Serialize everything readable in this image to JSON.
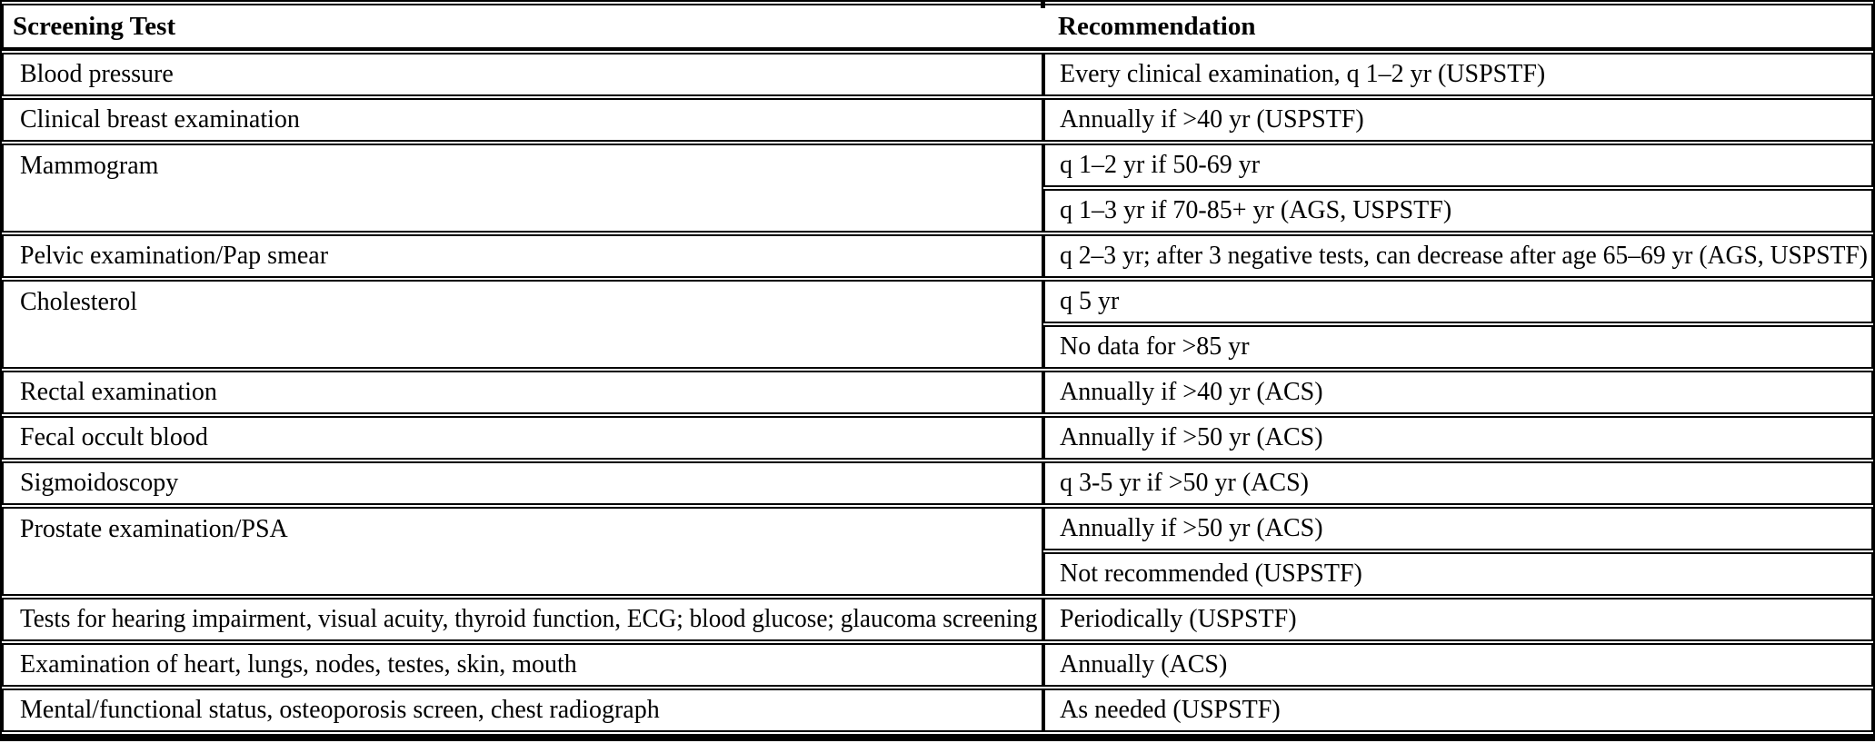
{
  "table": {
    "columns": [
      {
        "label": "Screening Test"
      },
      {
        "label": "Recommendation"
      }
    ],
    "rows": [
      {
        "test": "Blood pressure",
        "recommendations": [
          "Every clinical examination, q 1–2 yr (USPSTF)"
        ]
      },
      {
        "test": "Clinical breast examination",
        "recommendations": [
          "Annually if >40 yr (USPSTF)"
        ]
      },
      {
        "test": "Mammogram",
        "recommendations": [
          "q 1–2 yr if 50-69 yr",
          "q 1–3 yr if 70-85+ yr (AGS, USPSTF)"
        ]
      },
      {
        "test": "Pelvic examination/Pap smear",
        "recommendations": [
          "q 2–3 yr; after 3 negative tests, can decrease after age 65–69 yr (AGS, USPSTF)"
        ]
      },
      {
        "test": "Cholesterol",
        "recommendations": [
          "q 5 yr",
          "No data for >85 yr"
        ]
      },
      {
        "test": "Rectal examination",
        "recommendations": [
          "Annually if >40 yr (ACS)"
        ]
      },
      {
        "test": "Fecal occult blood",
        "recommendations": [
          "Annually if >50 yr (ACS)"
        ]
      },
      {
        "test": "Sigmoidoscopy",
        "recommendations": [
          "q 3-5 yr if >50 yr (ACS)"
        ]
      },
      {
        "test": "Prostate examination/PSA",
        "recommendations": [
          "Annually if >50 yr (ACS)",
          "Not recommended (USPSTF)"
        ]
      },
      {
        "test": "Tests for hearing impairment, visual acuity, thyroid function, ECG; blood glucose; glaucoma screening",
        "recommendations": [
          "Periodically (USPSTF)"
        ]
      },
      {
        "test": "Examination of heart, lungs, nodes, testes, skin, mouth",
        "recommendations": [
          "Annually (ACS)"
        ]
      },
      {
        "test": "Mental/functional status, osteoporosis screen, chest radiograph",
        "recommendations": [
          "As needed (USPSTF)"
        ]
      }
    ],
    "colors": {
      "border": "#000000",
      "background": "#ffffff",
      "text": "#000000"
    }
  }
}
